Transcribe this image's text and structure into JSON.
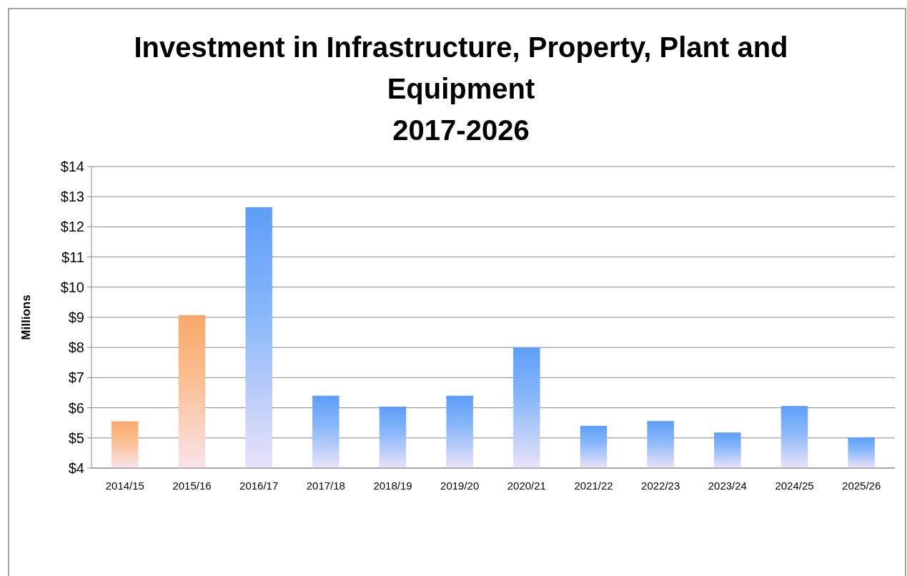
{
  "chart_data": {
    "type": "bar",
    "title": "Investment in Infrastructure, Property, Plant and\nEquipment\n2017-2026",
    "ylabel": "Millions",
    "categories": [
      "2014/15",
      "2015/16",
      "2016/17",
      "2017/18",
      "2018/19",
      "2019/20",
      "2020/21",
      "2021/22",
      "2022/23",
      "2023/24",
      "2024/25",
      "2025/26"
    ],
    "values": [
      5.55,
      9.07,
      12.65,
      6.4,
      6.04,
      6.4,
      8.0,
      5.4,
      5.56,
      5.18,
      6.06,
      5.02
    ],
    "colors": [
      "#f9a86a",
      "#f9a86a",
      "#5e9ef8",
      "#5e9ef8",
      "#5e9ef8",
      "#5e9ef8",
      "#5e9ef8",
      "#5e9ef8",
      "#5e9ef8",
      "#5e9ef8",
      "#5e9ef8",
      "#5e9ef8"
    ],
    "ylim": [
      4,
      14
    ],
    "yticks": [
      {
        "value": 4,
        "label": "$4"
      },
      {
        "value": 5,
        "label": "$5"
      },
      {
        "value": 6,
        "label": "$6"
      },
      {
        "value": 7,
        "label": "$7"
      },
      {
        "value": 8,
        "label": "$8"
      },
      {
        "value": 9,
        "label": "$9"
      },
      {
        "value": 10,
        "label": "$10"
      },
      {
        "value": 11,
        "label": "$11"
      },
      {
        "value": 12,
        "label": "$12"
      },
      {
        "value": 13,
        "label": "$13"
      },
      {
        "value": 14,
        "label": "$14"
      }
    ],
    "grid": "y"
  }
}
